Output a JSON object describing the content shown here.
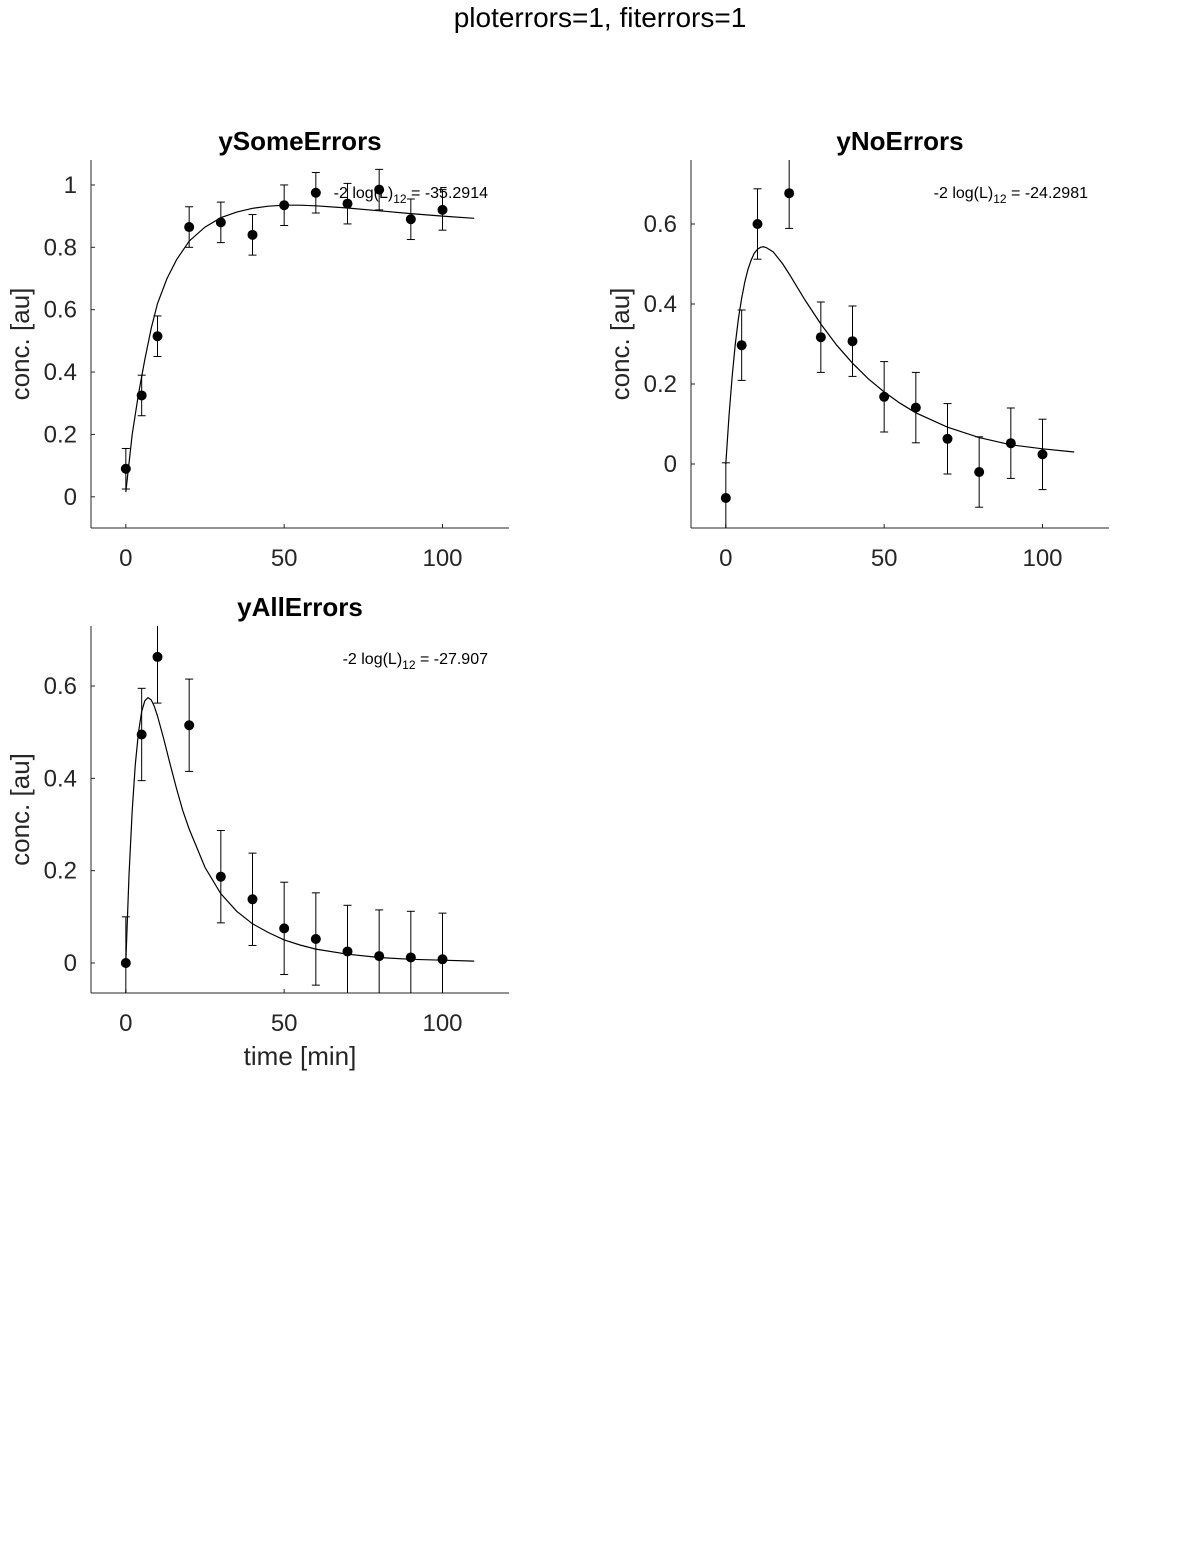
{
  "figure": {
    "title": "ploterrors=1, fiterrors=1"
  },
  "chart_data": [
    {
      "type": "scatter",
      "title": "ySomeErrors",
      "xlabel": "",
      "ylabel": "conc. [au]",
      "xlim": [
        -11,
        121
      ],
      "ylim": [
        -0.1,
        1.08
      ],
      "xticks": [
        0,
        50,
        100
      ],
      "yticks": [
        0,
        0.2,
        0.4,
        0.6,
        0.8,
        1
      ],
      "ytick_labels": [
        "0",
        "0.2",
        "0.4",
        "0.6",
        "0.8",
        "1"
      ],
      "annotation": {
        "prefix": "-2 log(L)",
        "sub": "12",
        "suffix": " = -35.2914"
      },
      "grid": false,
      "points": [
        {
          "x": 0,
          "y": 0.09,
          "err": 0.065
        },
        {
          "x": 5,
          "y": 0.325,
          "err": 0.065
        },
        {
          "x": 10,
          "y": 0.515,
          "err": 0.065
        },
        {
          "x": 20,
          "y": 0.865,
          "err": 0.065
        },
        {
          "x": 30,
          "y": 0.88,
          "err": 0.065
        },
        {
          "x": 40,
          "y": 0.84,
          "err": 0.065
        },
        {
          "x": 50,
          "y": 0.935,
          "err": 0.065
        },
        {
          "x": 60,
          "y": 0.975,
          "err": 0.065
        },
        {
          "x": 70,
          "y": 0.94,
          "err": 0.065
        },
        {
          "x": 80,
          "y": 0.985,
          "err": 0.065
        },
        {
          "x": 90,
          "y": 0.89,
          "err": 0.065
        },
        {
          "x": 100,
          "y": 0.92,
          "err": 0.065
        }
      ],
      "fit_line": {
        "x": [
          0,
          2,
          4,
          6,
          8,
          10,
          13,
          16,
          20,
          25,
          30,
          35,
          40,
          45,
          50,
          55,
          60,
          70,
          80,
          90,
          100,
          110
        ],
        "y": [
          0.015,
          0.2,
          0.33,
          0.44,
          0.54,
          0.62,
          0.7,
          0.76,
          0.82,
          0.865,
          0.895,
          0.913,
          0.925,
          0.932,
          0.935,
          0.935,
          0.933,
          0.926,
          0.917,
          0.908,
          0.9,
          0.893
        ]
      }
    },
    {
      "type": "scatter",
      "title": "yNoErrors",
      "xlabel": "",
      "ylabel": "conc. [au]",
      "xlim": [
        -11,
        121
      ],
      "ylim": [
        -0.16,
        0.76
      ],
      "xticks": [
        0,
        50,
        100
      ],
      "yticks": [
        0,
        0.2,
        0.4,
        0.6
      ],
      "ytick_labels": [
        "0",
        "0.2",
        "0.4",
        "0.6"
      ],
      "annotation": {
        "prefix": "-2 log(L)",
        "sub": "12",
        "suffix": " = -24.2981"
      },
      "grid": false,
      "points": [
        {
          "x": 0,
          "y": -0.085,
          "err": 0.088
        },
        {
          "x": 5,
          "y": 0.297,
          "err": 0.088
        },
        {
          "x": 10,
          "y": 0.6,
          "err": 0.088
        },
        {
          "x": 20,
          "y": 0.677,
          "err": 0.088
        },
        {
          "x": 30,
          "y": 0.317,
          "err": 0.088
        },
        {
          "x": 40,
          "y": 0.307,
          "err": 0.088
        },
        {
          "x": 50,
          "y": 0.168,
          "err": 0.088
        },
        {
          "x": 60,
          "y": 0.141,
          "err": 0.088
        },
        {
          "x": 70,
          "y": 0.063,
          "err": 0.088
        },
        {
          "x": 80,
          "y": -0.02,
          "err": 0.088
        },
        {
          "x": 90,
          "y": 0.052,
          "err": 0.088
        },
        {
          "x": 100,
          "y": 0.024,
          "err": 0.088
        }
      ],
      "fit_line": {
        "x": [
          0,
          1,
          2,
          3,
          4,
          5,
          6,
          7,
          8,
          9,
          10,
          11,
          12,
          13,
          15,
          18,
          20,
          25,
          30,
          35,
          40,
          45,
          50,
          55,
          60,
          70,
          80,
          90,
          100,
          110
        ],
        "y": [
          0.0,
          0.12,
          0.22,
          0.3,
          0.365,
          0.415,
          0.455,
          0.487,
          0.51,
          0.527,
          0.537,
          0.542,
          0.543,
          0.54,
          0.53,
          0.5,
          0.475,
          0.41,
          0.35,
          0.297,
          0.252,
          0.213,
          0.18,
          0.152,
          0.128,
          0.092,
          0.066,
          0.048,
          0.038,
          0.03
        ]
      }
    },
    {
      "type": "scatter",
      "title": "yAllErrors",
      "xlabel": "time [min]",
      "ylabel": "conc. [au]",
      "xlim": [
        -11,
        121
      ],
      "ylim": [
        -0.065,
        0.73
      ],
      "xticks": [
        0,
        50,
        100
      ],
      "yticks": [
        0,
        0.2,
        0.4,
        0.6
      ],
      "ytick_labels": [
        "0",
        "0.2",
        "0.4",
        "0.6"
      ],
      "annotation": {
        "prefix": "-2 log(L)",
        "sub": "12",
        "suffix": " = -27.907"
      },
      "grid": false,
      "points": [
        {
          "x": 0,
          "y": 0.0,
          "err": 0.1
        },
        {
          "x": 5,
          "y": 0.495,
          "err": 0.1
        },
        {
          "x": 10,
          "y": 0.663,
          "err": 0.1
        },
        {
          "x": 20,
          "y": 0.515,
          "err": 0.1
        },
        {
          "x": 30,
          "y": 0.187,
          "err": 0.1
        },
        {
          "x": 40,
          "y": 0.138,
          "err": 0.1
        },
        {
          "x": 50,
          "y": 0.075,
          "err": 0.1
        },
        {
          "x": 60,
          "y": 0.052,
          "err": 0.1
        },
        {
          "x": 70,
          "y": 0.025,
          "err": 0.1
        },
        {
          "x": 80,
          "y": 0.015,
          "err": 0.1
        },
        {
          "x": 90,
          "y": 0.012,
          "err": 0.1
        },
        {
          "x": 100,
          "y": 0.008,
          "err": 0.1
        }
      ],
      "fit_line": {
        "x": [
          0,
          1,
          2,
          3,
          4,
          5,
          6,
          7,
          8,
          9,
          10,
          12,
          14,
          16,
          18,
          20,
          25,
          30,
          35,
          40,
          45,
          50,
          55,
          60,
          70,
          80,
          90,
          100,
          110
        ],
        "y": [
          0.0,
          0.19,
          0.33,
          0.43,
          0.5,
          0.545,
          0.568,
          0.575,
          0.57,
          0.556,
          0.535,
          0.485,
          0.43,
          0.378,
          0.33,
          0.29,
          0.207,
          0.15,
          0.112,
          0.085,
          0.066,
          0.05,
          0.039,
          0.03,
          0.019,
          0.012,
          0.008,
          0.006,
          0.004
        ]
      }
    }
  ]
}
